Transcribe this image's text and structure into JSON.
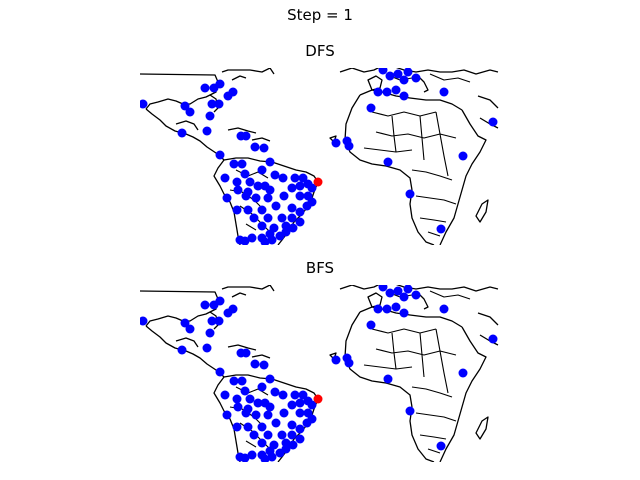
{
  "figure": {
    "suptitle": "Step = 1"
  },
  "panels": [
    {
      "id": "dfs",
      "title": "DFS",
      "visited_color": "#0000ff",
      "current_color": "#ff0000",
      "visited_points": [
        [
          220,
          84
        ],
        [
          205,
          88
        ],
        [
          214,
          88
        ],
        [
          228,
          96
        ],
        [
          233,
          92
        ],
        [
          212,
          104
        ],
        [
          219,
          104
        ],
        [
          185,
          106
        ],
        [
          190,
          112
        ],
        [
          143,
          104
        ],
        [
          210,
          116
        ],
        [
          182,
          133
        ],
        [
          207,
          131
        ],
        [
          241,
          136
        ],
        [
          246,
          136
        ],
        [
          220,
          155
        ],
        [
          255,
          147
        ],
        [
          264,
          148
        ],
        [
          234,
          164
        ],
        [
          242,
          164
        ],
        [
          270,
          162
        ],
        [
          245,
          174
        ],
        [
          262,
          170
        ],
        [
          275,
          175
        ],
        [
          283,
          178
        ],
        [
          295,
          178
        ],
        [
          303,
          178
        ],
        [
          225,
          178
        ],
        [
          237,
          182
        ],
        [
          250,
          182
        ],
        [
          258,
          186
        ],
        [
          265,
          186
        ],
        [
          238,
          190
        ],
        [
          248,
          192
        ],
        [
          270,
          190
        ],
        [
          292,
          188
        ],
        [
          300,
          186
        ],
        [
          308,
          184
        ],
        [
          312,
          188
        ],
        [
          227,
          198
        ],
        [
          246,
          196
        ],
        [
          256,
          198
        ],
        [
          268,
          198
        ],
        [
          284,
          196
        ],
        [
          300,
          196
        ],
        [
          308,
          196
        ],
        [
          312,
          202
        ],
        [
          237,
          210
        ],
        [
          248,
          210
        ],
        [
          262,
          210
        ],
        [
          276,
          206
        ],
        [
          292,
          208
        ],
        [
          300,
          212
        ],
        [
          307,
          206
        ],
        [
          254,
          218
        ],
        [
          268,
          218
        ],
        [
          282,
          218
        ],
        [
          292,
          218
        ],
        [
          300,
          222
        ],
        [
          262,
          226
        ],
        [
          274,
          228
        ],
        [
          286,
          226
        ],
        [
          293,
          228
        ],
        [
          270,
          234
        ],
        [
          280,
          236
        ],
        [
          286,
          232
        ],
        [
          272,
          240
        ],
        [
          262,
          238
        ],
        [
          252,
          238
        ],
        [
          240,
          240
        ],
        [
          245,
          241
        ],
        [
          265,
          242
        ],
        [
          383,
          70
        ],
        [
          390,
          76
        ],
        [
          398,
          74
        ],
        [
          404,
          80
        ],
        [
          408,
          72
        ],
        [
          416,
          78
        ],
        [
          378,
          92
        ],
        [
          387,
          92
        ],
        [
          396,
          90
        ],
        [
          404,
          96
        ],
        [
          371,
          108
        ],
        [
          444,
          92
        ],
        [
          493,
          122
        ],
        [
          347,
          141
        ],
        [
          336,
          143
        ],
        [
          349,
          146
        ],
        [
          388,
          162
        ],
        [
          463,
          156
        ],
        [
          410,
          194
        ],
        [
          441,
          229
        ]
      ],
      "current_point": [
        318,
        182
      ]
    },
    {
      "id": "bfs",
      "title": "BFS",
      "visited_color": "#0000ff",
      "current_color": "#ff0000",
      "visited_points": [
        [
          220,
          301
        ],
        [
          205,
          305
        ],
        [
          214,
          305
        ],
        [
          228,
          313
        ],
        [
          233,
          309
        ],
        [
          212,
          321
        ],
        [
          219,
          321
        ],
        [
          185,
          323
        ],
        [
          190,
          329
        ],
        [
          143,
          321
        ],
        [
          210,
          333
        ],
        [
          182,
          350
        ],
        [
          207,
          348
        ],
        [
          241,
          353
        ],
        [
          246,
          353
        ],
        [
          220,
          372
        ],
        [
          255,
          364
        ],
        [
          264,
          365
        ],
        [
          234,
          381
        ],
        [
          242,
          381
        ],
        [
          270,
          379
        ],
        [
          245,
          391
        ],
        [
          262,
          387
        ],
        [
          275,
          392
        ],
        [
          283,
          395
        ],
        [
          295,
          395
        ],
        [
          303,
          395
        ],
        [
          225,
          395
        ],
        [
          237,
          399
        ],
        [
          250,
          399
        ],
        [
          258,
          403
        ],
        [
          265,
          403
        ],
        [
          238,
          407
        ],
        [
          248,
          409
        ],
        [
          270,
          407
        ],
        [
          292,
          405
        ],
        [
          300,
          403
        ],
        [
          308,
          401
        ],
        [
          312,
          405
        ],
        [
          227,
          415
        ],
        [
          246,
          413
        ],
        [
          256,
          415
        ],
        [
          268,
          415
        ],
        [
          284,
          413
        ],
        [
          300,
          413
        ],
        [
          308,
          413
        ],
        [
          312,
          419
        ],
        [
          237,
          427
        ],
        [
          248,
          427
        ],
        [
          262,
          427
        ],
        [
          276,
          423
        ],
        [
          292,
          425
        ],
        [
          300,
          429
        ],
        [
          307,
          423
        ],
        [
          254,
          435
        ],
        [
          268,
          435
        ],
        [
          282,
          435
        ],
        [
          292,
          435
        ],
        [
          300,
          439
        ],
        [
          262,
          443
        ],
        [
          274,
          445
        ],
        [
          286,
          443
        ],
        [
          293,
          445
        ],
        [
          270,
          451
        ],
        [
          280,
          453
        ],
        [
          286,
          449
        ],
        [
          272,
          457
        ],
        [
          262,
          455
        ],
        [
          252,
          455
        ],
        [
          240,
          457
        ],
        [
          245,
          458
        ],
        [
          265,
          459
        ],
        [
          383,
          287
        ],
        [
          390,
          293
        ],
        [
          398,
          291
        ],
        [
          404,
          297
        ],
        [
          408,
          289
        ],
        [
          416,
          295
        ],
        [
          378,
          309
        ],
        [
          387,
          309
        ],
        [
          396,
          307
        ],
        [
          404,
          313
        ],
        [
          371,
          325
        ],
        [
          444,
          309
        ],
        [
          493,
          339
        ],
        [
          347,
          358
        ],
        [
          336,
          360
        ],
        [
          349,
          363
        ],
        [
          388,
          379
        ],
        [
          463,
          373
        ],
        [
          410,
          411
        ],
        [
          441,
          446
        ]
      ],
      "current_point": [
        318,
        399
      ]
    }
  ]
}
